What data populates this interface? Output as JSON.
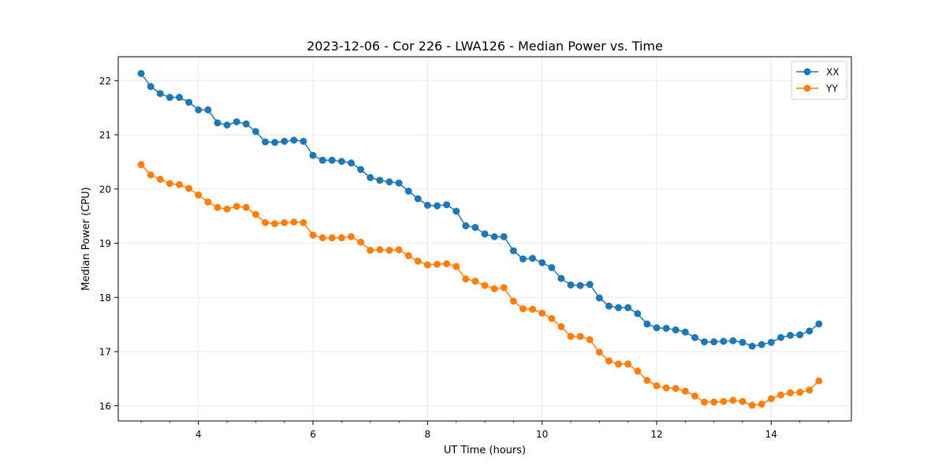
{
  "chart_data": {
    "type": "line",
    "title": "2023-12-06 - Cor 226 - LWA126 - Median Power vs. Time",
    "xlabel": "UT Time (hours)",
    "ylabel": "Median Power (CPU)",
    "xlim": [
      2.6,
      15.4
    ],
    "ylim": [
      15.72,
      22.44
    ],
    "xticks": [
      4,
      6,
      8,
      10,
      12,
      14
    ],
    "yticks": [
      16,
      17,
      18,
      19,
      20,
      21,
      22
    ],
    "grid": true,
    "legend_position": "top-right",
    "x": [
      3.0,
      3.167,
      3.333,
      3.5,
      3.667,
      3.833,
      4.0,
      4.167,
      4.333,
      4.5,
      4.667,
      4.833,
      5.0,
      5.167,
      5.333,
      5.5,
      5.667,
      5.833,
      6.0,
      6.167,
      6.333,
      6.5,
      6.667,
      6.833,
      7.0,
      7.167,
      7.333,
      7.5,
      7.667,
      7.833,
      8.0,
      8.167,
      8.333,
      8.5,
      8.667,
      8.833,
      9.0,
      9.167,
      9.333,
      9.5,
      9.667,
      9.833,
      10.0,
      10.167,
      10.333,
      10.5,
      10.667,
      10.833,
      11.0,
      11.167,
      11.333,
      11.5,
      11.667,
      11.833,
      12.0,
      12.167,
      12.333,
      12.5,
      12.667,
      12.833,
      13.0,
      13.167,
      13.333,
      13.5,
      13.667,
      13.833,
      14.0,
      14.167,
      14.333,
      14.5,
      14.667,
      14.833
    ],
    "series": [
      {
        "name": "XX",
        "color": "#1f77b4",
        "values": [
          22.13,
          21.89,
          21.76,
          21.69,
          21.69,
          21.6,
          21.46,
          21.46,
          21.22,
          21.18,
          21.24,
          21.2,
          21.06,
          20.87,
          20.86,
          20.88,
          20.9,
          20.88,
          20.62,
          20.53,
          20.53,
          20.51,
          20.48,
          20.36,
          20.21,
          20.16,
          20.13,
          20.11,
          19.96,
          19.82,
          19.7,
          19.69,
          19.71,
          19.59,
          19.32,
          19.29,
          19.17,
          19.12,
          19.12,
          18.86,
          18.71,
          18.72,
          18.64,
          18.55,
          18.35,
          18.23,
          18.22,
          18.24,
          17.99,
          17.84,
          17.81,
          17.81,
          17.7,
          17.51,
          17.44,
          17.43,
          17.4,
          17.36,
          17.26,
          17.18,
          17.18,
          17.19,
          17.2,
          17.17,
          17.1,
          17.13,
          17.17,
          17.26,
          17.3,
          17.31,
          17.38,
          17.51
        ]
      },
      {
        "name": "YY",
        "color": "#ff7f0e",
        "values": [
          20.45,
          20.26,
          20.18,
          20.1,
          20.08,
          20.01,
          19.89,
          19.76,
          19.66,
          19.63,
          19.68,
          19.66,
          19.53,
          19.38,
          19.36,
          19.38,
          19.39,
          19.38,
          19.15,
          19.1,
          19.1,
          19.1,
          19.12,
          19.02,
          18.87,
          18.88,
          18.87,
          18.88,
          18.77,
          18.67,
          18.6,
          18.61,
          18.62,
          18.57,
          18.34,
          18.3,
          18.22,
          18.16,
          18.18,
          17.93,
          17.79,
          17.78,
          17.71,
          17.61,
          17.46,
          17.28,
          17.28,
          17.22,
          16.99,
          16.83,
          16.77,
          16.77,
          16.64,
          16.47,
          16.37,
          16.33,
          16.32,
          16.27,
          16.18,
          16.07,
          16.07,
          16.08,
          16.1,
          16.08,
          16.01,
          16.03,
          16.13,
          16.2,
          16.24,
          16.25,
          16.29,
          16.46
        ]
      }
    ]
  }
}
